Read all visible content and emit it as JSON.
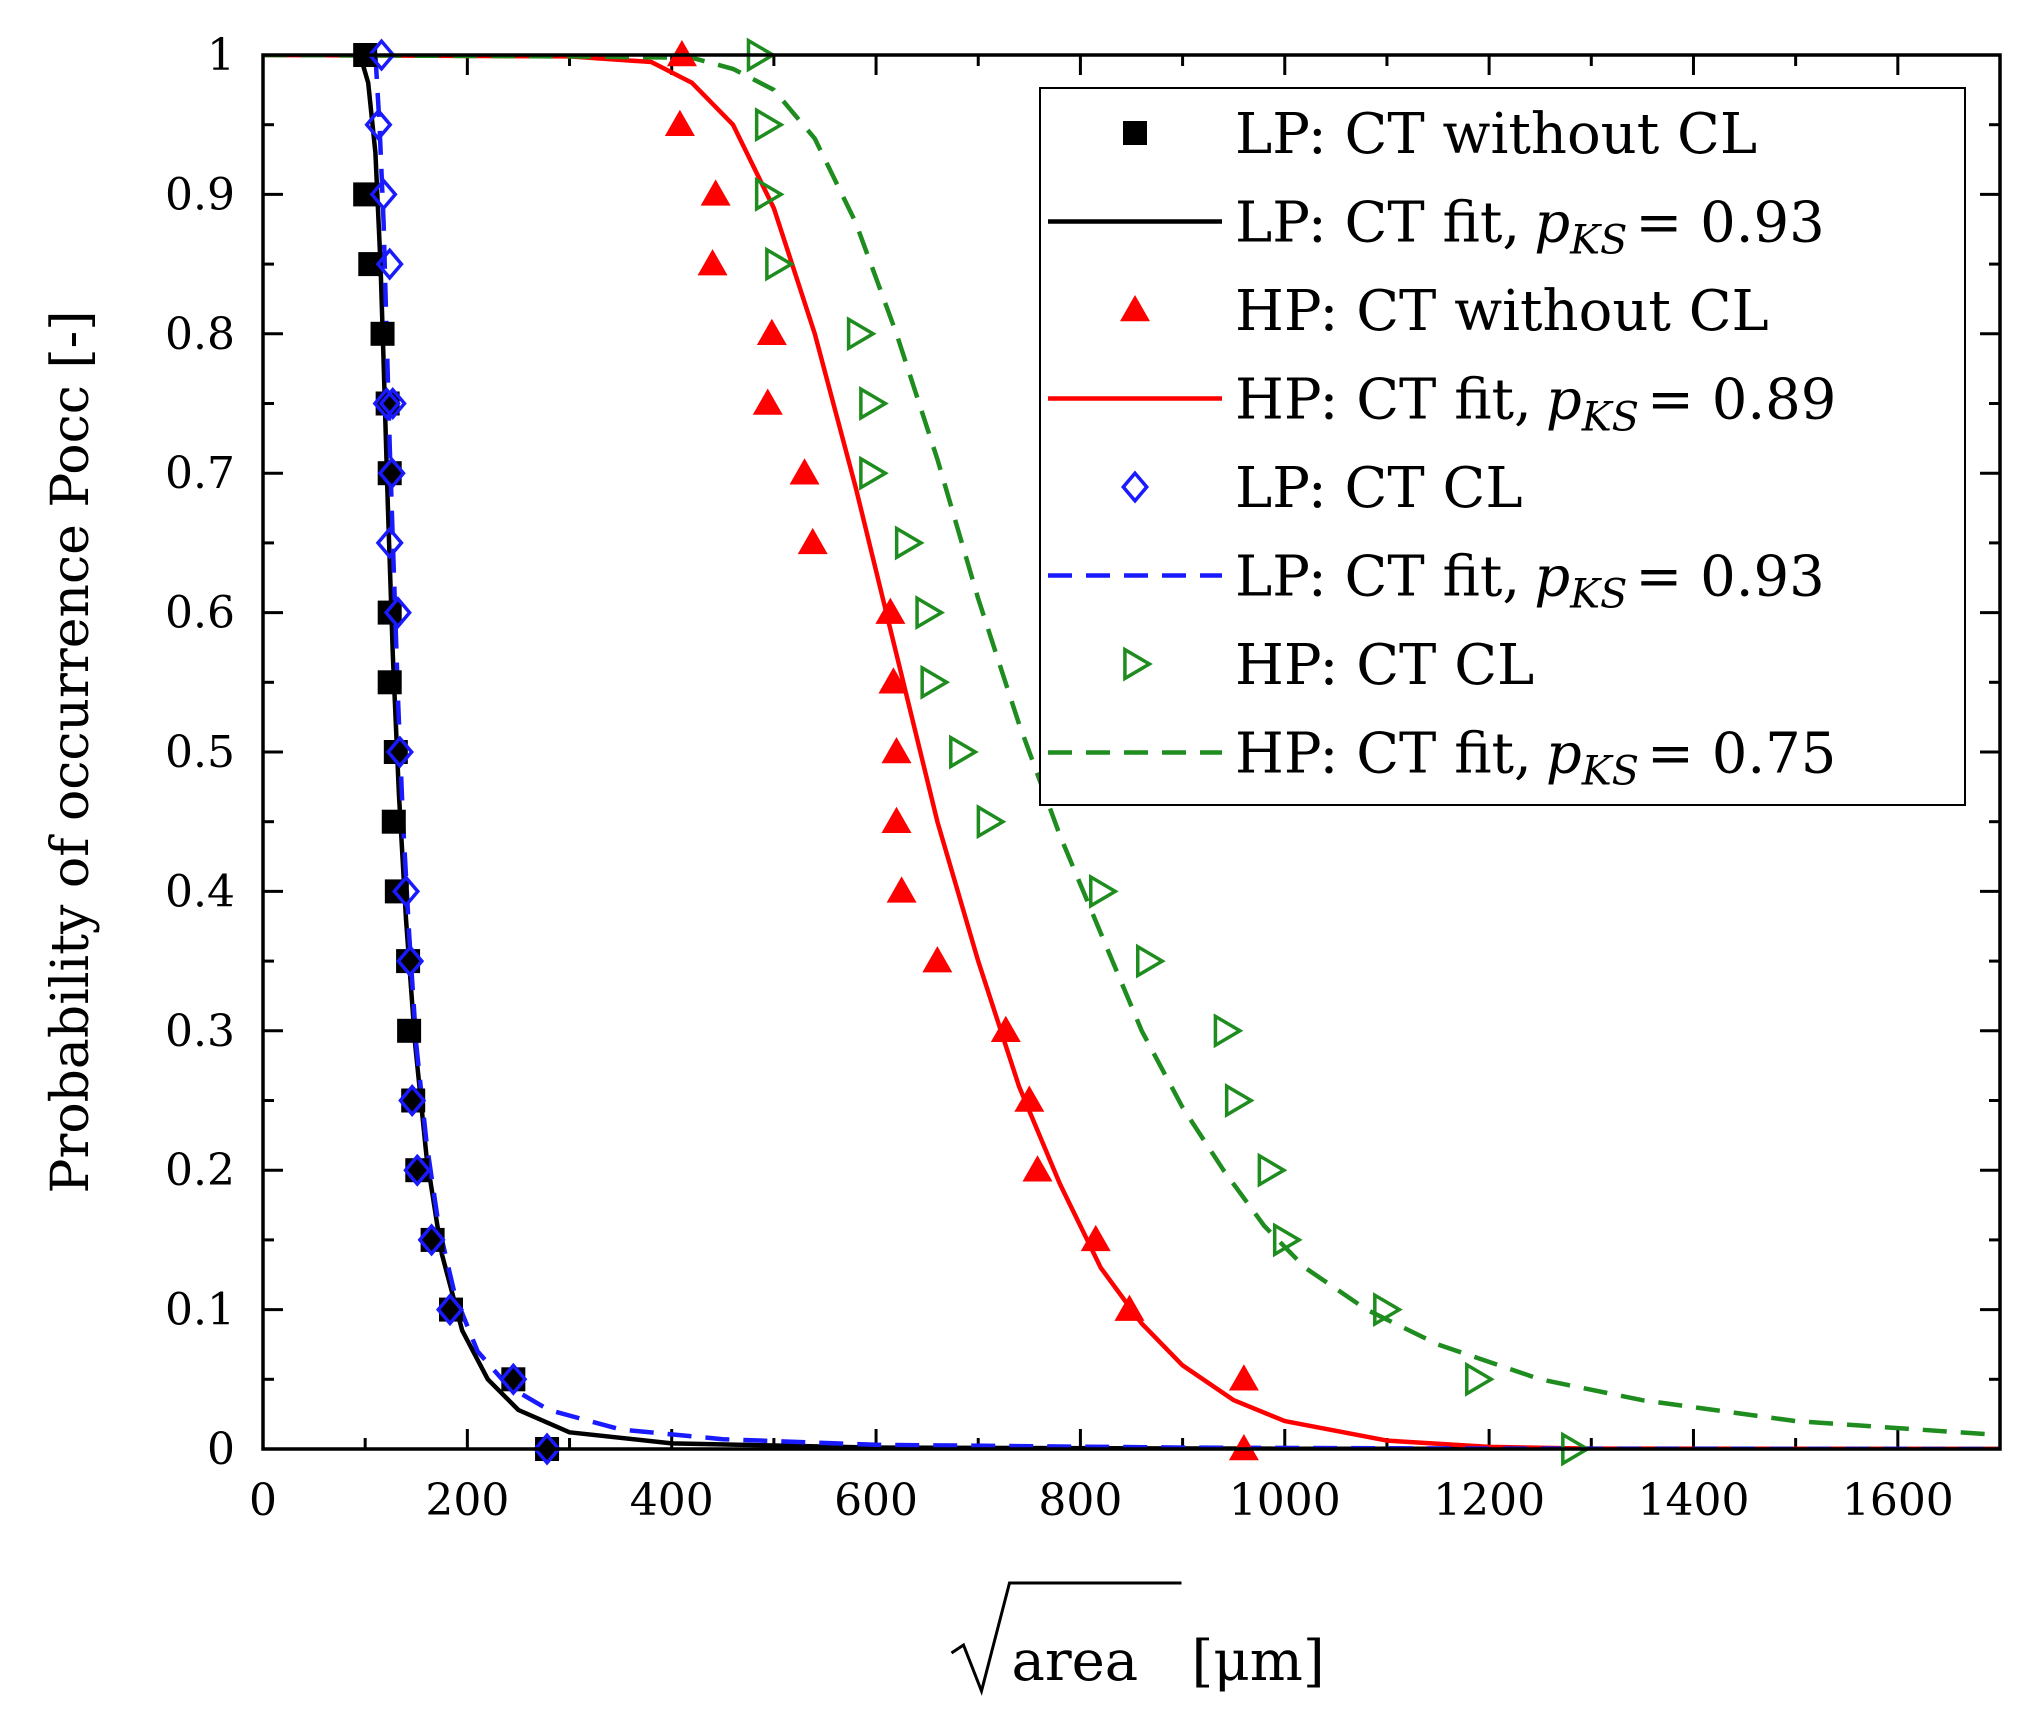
{
  "colors": {
    "black": "#000000",
    "red": "#ff0000",
    "blue": "#1a1aff",
    "green": "#1e8c1e",
    "axis": "#000000"
  },
  "chart_data": {
    "type": "scatter",
    "xlabel_root": "area",
    "xlabel_unit": "[μm]",
    "ylabel": "Probability of occurrence Pocc [-]",
    "xlim": [
      0,
      1700
    ],
    "ylim": [
      0,
      1
    ],
    "grid": false,
    "legend_position": "top-right",
    "xticks": [
      0,
      200,
      400,
      600,
      800,
      1000,
      1200,
      1400,
      1600
    ],
    "xtick_labels": [
      "0",
      "200",
      "400",
      "600",
      "800",
      "1000",
      "1200",
      "1400",
      "1600"
    ],
    "yticks": [
      0,
      0.1,
      0.2,
      0.3,
      0.4,
      0.5,
      0.6,
      0.7,
      0.8,
      0.9,
      1
    ],
    "ytick_labels": [
      "0",
      "0.1",
      "0.2",
      "0.3",
      "0.4",
      "0.5",
      "0.6",
      "0.7",
      "0.8",
      "0.9",
      "1"
    ],
    "x_minor_step": 100,
    "y_minor_step": 0.05,
    "series": [
      {
        "name": "LP: CT without CL",
        "kind": "markers",
        "marker": "square",
        "color": "#000000",
        "points": [
          [
            100,
            1.0
          ],
          [
            100,
            0.9
          ],
          [
            105,
            0.85
          ],
          [
            117,
            0.8
          ],
          [
            122,
            0.75
          ],
          [
            124,
            0.7
          ],
          [
            124,
            0.6
          ],
          [
            124,
            0.55
          ],
          [
            130,
            0.5
          ],
          [
            128,
            0.45
          ],
          [
            131,
            0.4
          ],
          [
            142,
            0.35
          ],
          [
            143,
            0.3
          ],
          [
            147,
            0.25
          ],
          [
            151,
            0.2
          ],
          [
            166,
            0.15
          ],
          [
            184,
            0.1
          ],
          [
            245,
            0.05
          ],
          [
            278,
            0.0
          ]
        ]
      },
      {
        "name": "LP: CT fit,",
        "pks": "0.93",
        "kind": "line",
        "dash": "solid",
        "color": "#000000",
        "points": [
          [
            95,
            1.0
          ],
          [
            103,
            0.98
          ],
          [
            110,
            0.93
          ],
          [
            115,
            0.85
          ],
          [
            118,
            0.78
          ],
          [
            122,
            0.68
          ],
          [
            127,
            0.57
          ],
          [
            133,
            0.47
          ],
          [
            140,
            0.38
          ],
          [
            149,
            0.29
          ],
          [
            160,
            0.21
          ],
          [
            175,
            0.14
          ],
          [
            195,
            0.085
          ],
          [
            220,
            0.05
          ],
          [
            250,
            0.028
          ],
          [
            300,
            0.012
          ],
          [
            400,
            0.004
          ],
          [
            600,
            0.001
          ],
          [
            1000,
            0.0002
          ],
          [
            1700,
            0.0
          ]
        ]
      },
      {
        "name": "HP: CT without CL",
        "kind": "markers",
        "marker": "triangle-up",
        "color": "#ff0000",
        "points": [
          [
            410,
            1.0
          ],
          [
            408,
            0.95
          ],
          [
            443,
            0.9
          ],
          [
            440,
            0.85
          ],
          [
            498,
            0.8
          ],
          [
            494,
            0.75
          ],
          [
            530,
            0.7
          ],
          [
            538,
            0.65
          ],
          [
            614,
            0.6
          ],
          [
            617,
            0.55
          ],
          [
            620,
            0.5
          ],
          [
            620,
            0.45
          ],
          [
            625,
            0.4
          ],
          [
            660,
            0.35
          ],
          [
            727,
            0.3
          ],
          [
            750,
            0.25
          ],
          [
            758,
            0.2
          ],
          [
            815,
            0.15
          ],
          [
            848,
            0.1
          ],
          [
            960,
            0.05
          ],
          [
            960,
            0.0
          ]
        ]
      },
      {
        "name": "HP: CT fit,",
        "pks": "0.89",
        "kind": "line",
        "dash": "solid",
        "color": "#ff0000",
        "points": [
          [
            0,
            1.0
          ],
          [
            300,
            0.999
          ],
          [
            380,
            0.995
          ],
          [
            420,
            0.98
          ],
          [
            460,
            0.95
          ],
          [
            500,
            0.89
          ],
          [
            540,
            0.8
          ],
          [
            580,
            0.69
          ],
          [
            620,
            0.57
          ],
          [
            660,
            0.45
          ],
          [
            700,
            0.35
          ],
          [
            740,
            0.26
          ],
          [
            780,
            0.19
          ],
          [
            820,
            0.13
          ],
          [
            860,
            0.09
          ],
          [
            900,
            0.06
          ],
          [
            950,
            0.035
          ],
          [
            1000,
            0.02
          ],
          [
            1100,
            0.006
          ],
          [
            1200,
            0.0015
          ],
          [
            1300,
            0.0003
          ],
          [
            1700,
            0.0
          ]
        ]
      },
      {
        "name": "LP: CT CL",
        "kind": "markers",
        "marker": "diamond-open",
        "color": "#1a1aff",
        "points": [
          [
            116,
            1.0
          ],
          [
            113,
            0.95
          ],
          [
            118,
            0.9
          ],
          [
            124,
            0.85
          ],
          [
            121,
            0.75
          ],
          [
            127,
            0.75
          ],
          [
            126,
            0.7
          ],
          [
            124,
            0.65
          ],
          [
            132,
            0.6
          ],
          [
            134,
            0.5
          ],
          [
            140,
            0.4
          ],
          [
            144,
            0.35
          ],
          [
            146,
            0.25
          ],
          [
            151,
            0.2
          ],
          [
            165,
            0.15
          ],
          [
            183,
            0.1
          ],
          [
            245,
            0.05
          ],
          [
            278,
            0.0
          ]
        ]
      },
      {
        "name": "LP: CT fit,",
        "pks": "0.93",
        "kind": "line",
        "dash": "dashed",
        "color": "#1a1aff",
        "points": [
          [
            110,
            1.0
          ],
          [
            114,
            0.95
          ],
          [
            118,
            0.88
          ],
          [
            121,
            0.8
          ],
          [
            124,
            0.72
          ],
          [
            128,
            0.63
          ],
          [
            132,
            0.54
          ],
          [
            137,
            0.45
          ],
          [
            143,
            0.37
          ],
          [
            150,
            0.29
          ],
          [
            160,
            0.22
          ],
          [
            172,
            0.16
          ],
          [
            188,
            0.11
          ],
          [
            210,
            0.07
          ],
          [
            240,
            0.045
          ],
          [
            280,
            0.028
          ],
          [
            350,
            0.014
          ],
          [
            450,
            0.007
          ],
          [
            600,
            0.003
          ],
          [
            900,
            0.001
          ],
          [
            1200,
            0.0003
          ],
          [
            1700,
            0.0
          ]
        ]
      },
      {
        "name": "HP: CT CL",
        "kind": "markers",
        "marker": "triangle-right-open",
        "color": "#1e8c1e",
        "points": [
          [
            485,
            1.0
          ],
          [
            493,
            0.95
          ],
          [
            493,
            0.9
          ],
          [
            503,
            0.85
          ],
          [
            583,
            0.8
          ],
          [
            595,
            0.75
          ],
          [
            595,
            0.7
          ],
          [
            630,
            0.65
          ],
          [
            650,
            0.6
          ],
          [
            655,
            0.55
          ],
          [
            683,
            0.5
          ],
          [
            710,
            0.45
          ],
          [
            820,
            0.4
          ],
          [
            866,
            0.35
          ],
          [
            942,
            0.3
          ],
          [
            953,
            0.25
          ],
          [
            985,
            0.2
          ],
          [
            1000,
            0.15
          ],
          [
            1098,
            0.1
          ],
          [
            1188,
            0.05
          ],
          [
            1282,
            0.0
          ]
        ]
      },
      {
        "name": "HP: CT fit,",
        "pks": "0.75",
        "kind": "line",
        "dash": "dashed",
        "color": "#1e8c1e",
        "points": [
          [
            0,
            1.0
          ],
          [
            300,
            0.999
          ],
          [
            420,
            0.998
          ],
          [
            460,
            0.99
          ],
          [
            500,
            0.975
          ],
          [
            540,
            0.94
          ],
          [
            580,
            0.88
          ],
          [
            620,
            0.8
          ],
          [
            660,
            0.71
          ],
          [
            700,
            0.61
          ],
          [
            740,
            0.52
          ],
          [
            780,
            0.44
          ],
          [
            820,
            0.37
          ],
          [
            860,
            0.3
          ],
          [
            900,
            0.245
          ],
          [
            940,
            0.2
          ],
          [
            980,
            0.16
          ],
          [
            1020,
            0.13
          ],
          [
            1080,
            0.1
          ],
          [
            1150,
            0.075
          ],
          [
            1250,
            0.05
          ],
          [
            1350,
            0.035
          ],
          [
            1500,
            0.02
          ],
          [
            1600,
            0.015
          ],
          [
            1700,
            0.01
          ]
        ]
      }
    ]
  }
}
